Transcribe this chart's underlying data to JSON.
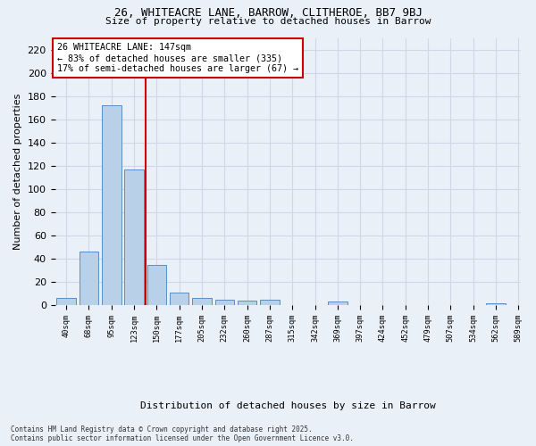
{
  "title1": "26, WHITEACRE LANE, BARROW, CLITHEROE, BB7 9BJ",
  "title2": "Size of property relative to detached houses in Barrow",
  "xlabel": "Distribution of detached houses by size in Barrow",
  "ylabel": "Number of detached properties",
  "bar_values": [
    6,
    46,
    172,
    117,
    35,
    11,
    6,
    5,
    4,
    5,
    0,
    0,
    3,
    0,
    0,
    0,
    0,
    0,
    0,
    2
  ],
  "bar_labels": [
    "40sqm",
    "68sqm",
    "95sqm",
    "123sqm",
    "150sqm",
    "177sqm",
    "205sqm",
    "232sqm",
    "260sqm",
    "287sqm",
    "315sqm",
    "342sqm",
    "369sqm",
    "397sqm",
    "424sqm",
    "452sqm",
    "479sqm",
    "507sqm",
    "534sqm",
    "562sqm",
    "589sqm"
  ],
  "bar_color": "#b8d0e8",
  "bar_edge_color": "#5a8fc4",
  "grid_color": "#d0d8e8",
  "background_color": "#eaf0f8",
  "vline_x": 3.5,
  "vline_color": "#cc0000",
  "annotation_text": "26 WHITEACRE LANE: 147sqm\n← 83% of detached houses are smaller (335)\n17% of semi-detached houses are larger (67) →",
  "annotation_box_color": "#ffffff",
  "annotation_box_edge": "#cc0000",
  "yticks": [
    0,
    20,
    40,
    60,
    80,
    100,
    120,
    140,
    160,
    180,
    200,
    220
  ],
  "ylim": [
    0,
    230
  ],
  "copyright_text": "Contains HM Land Registry data © Crown copyright and database right 2025.\nContains public sector information licensed under the Open Government Licence v3.0."
}
